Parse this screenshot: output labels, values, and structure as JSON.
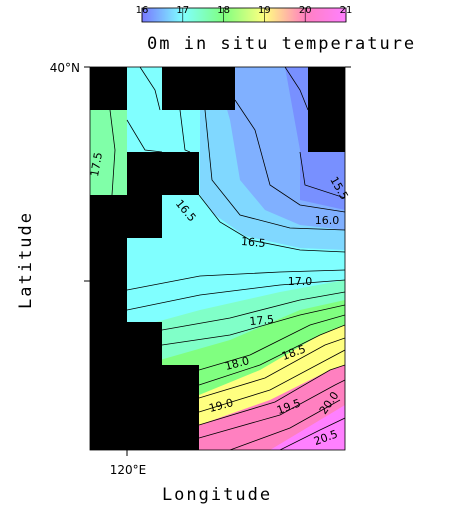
{
  "chart_data": {
    "type": "contour",
    "title": "0m in situ temperature",
    "xlabel": "Longitude",
    "ylabel": "Latitude",
    "xtick_labels": [
      "120°E"
    ],
    "ytick_labels": [
      "40°N"
    ],
    "colorbar": {
      "lim": [
        16,
        21
      ],
      "ticks": [
        16,
        17,
        18,
        19,
        20,
        21
      ],
      "colors": [
        "#7878ff",
        "#80ffff",
        "#80ff80",
        "#ffff80",
        "#ff80c0",
        "#ff80ff"
      ]
    },
    "contours": {
      "values": [
        17.5,
        15.5,
        16.0,
        16.5,
        16.5,
        17.0,
        17.5,
        18.0,
        18.5,
        19.0,
        19.5,
        20.0,
        20.5
      ],
      "value_labels": [
        "17.5",
        "15.5",
        "16.0",
        "16.5",
        "16.5",
        "17.0",
        "17.5",
        "18.0",
        "18.5",
        "19.0",
        "19.5",
        "20.0",
        "20.5"
      ]
    },
    "land_color": "#000000"
  }
}
